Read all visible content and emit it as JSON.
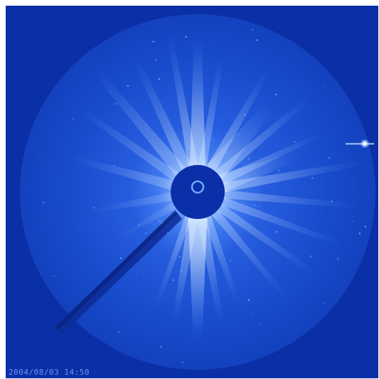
{
  "image": {
    "timestamp_text": "2004/08/03 14:50",
    "colors": {
      "background": "#0a2fa6",
      "field": "#1a55d8",
      "streamer": "#cfe6ff",
      "occulter": "#0b2fa8",
      "annotation": "#7fa4ff"
    }
  }
}
